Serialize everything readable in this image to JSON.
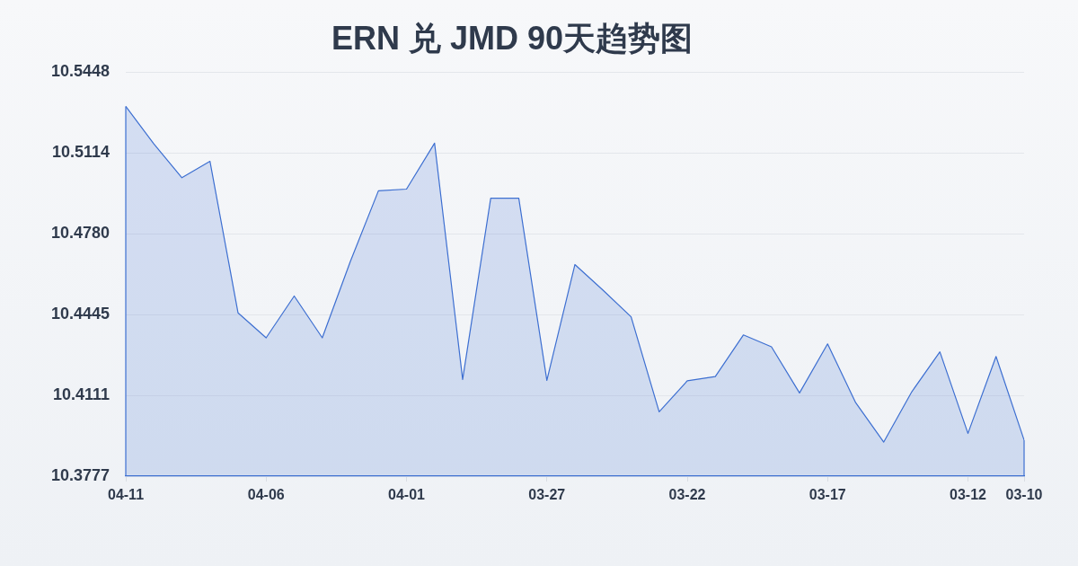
{
  "chart_data": {
    "type": "area",
    "title": "ERN 兑 JMD 90天趋势图",
    "categories": [
      "04-11",
      null,
      null,
      null,
      null,
      "04-06",
      null,
      null,
      null,
      null,
      "04-01",
      null,
      null,
      null,
      null,
      "03-27",
      null,
      null,
      null,
      null,
      "03-22",
      null,
      null,
      null,
      null,
      "03-17",
      null,
      null,
      null,
      null,
      "03-12",
      null,
      "03-10"
    ],
    "values": [
      10.5306,
      10.5151,
      10.5011,
      10.5079,
      10.4452,
      10.4349,
      10.4522,
      10.4349,
      10.4665,
      10.4957,
      10.4964,
      10.5154,
      10.4177,
      10.4926,
      10.4926,
      10.4173,
      10.4652,
      10.4546,
      10.4436,
      10.4043,
      10.4171,
      10.4189,
      10.4361,
      10.4312,
      10.4121,
      10.4324,
      10.4081,
      10.3918,
      10.4126,
      10.4291,
      10.3954,
      10.4272,
      10.3926
    ],
    "color": "#3d6fd1",
    "ylim": [
      10.3777,
      10.5448
    ],
    "yticks": [
      10.3777,
      10.4111,
      10.4445,
      {
        "value": 10.478,
        "label": "10.4780"
      },
      10.5114,
      10.5448
    ],
    "grid": "y",
    "legend": false,
    "marker": "none"
  }
}
